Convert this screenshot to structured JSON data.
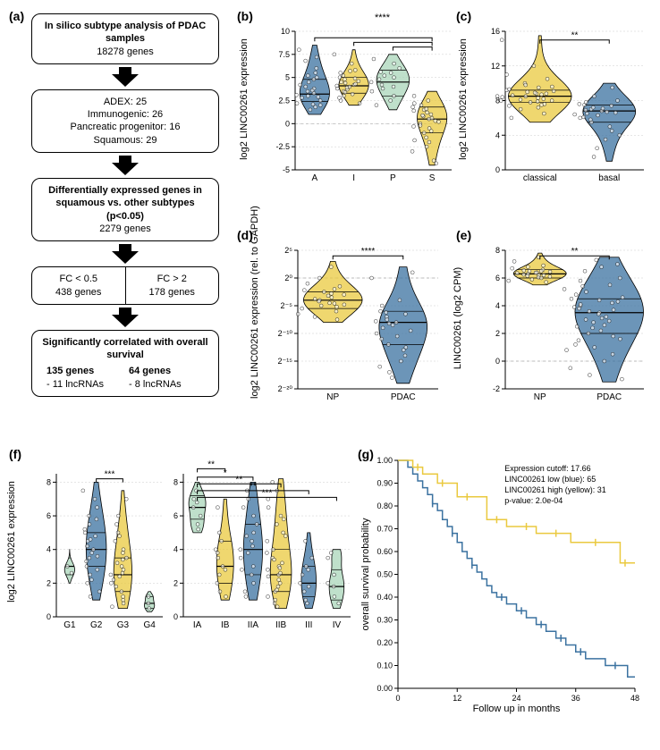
{
  "colors": {
    "blue": "#3b72a0",
    "yellow": "#eac93f",
    "green": "#a9d5b9",
    "axis": "#000000",
    "grid": "#cccccc"
  },
  "panel_a": {
    "label": "(a)",
    "boxes": [
      {
        "type": "single",
        "title": "In silico subtype analysis of PDAC samples",
        "sub": "18278 genes"
      },
      {
        "type": "single",
        "lines": [
          "ADEX: 25",
          "Immunogenic: 26",
          "Pancreatic progenitor: 16",
          "Squamous: 29"
        ]
      },
      {
        "type": "single",
        "title": "Differentially expressed genes in squamous vs. other subtypes (p<0.05)",
        "sub": "2279 genes"
      },
      {
        "type": "split",
        "left_title": "FC < 0.5",
        "left_sub": "438 genes",
        "right_title": "FC > 2",
        "right_sub": "178 genes"
      },
      {
        "type": "single",
        "title": "Significantly correlated with overall survival",
        "left": "135 genes",
        "left_sub": "- 11 lncRNAs",
        "right": "64 genes",
        "right_sub": "- 8 lncRNAs"
      }
    ]
  },
  "panel_b": {
    "label": "(b)",
    "ylabel": "log2 LINC00261 expression",
    "ylim": [
      -5,
      10
    ],
    "yticks": [
      -5,
      -2.5,
      0,
      2.5,
      5,
      7.5,
      10
    ],
    "categories": [
      "A",
      "I",
      "P",
      "S"
    ],
    "colors": [
      "#3b72a0",
      "#eac93f",
      "#a9d5b9",
      "#eac93f"
    ],
    "sig": "****",
    "series": [
      {
        "median": 3.2,
        "q1": 2.4,
        "q3": 4.8,
        "lo": 1.0,
        "hi": 8.5,
        "w": 1.0,
        "pts": [
          3.0,
          2.5,
          4.5,
          5.5,
          2.1,
          3.8,
          6.0,
          1.5,
          8.0,
          2.8,
          3.5,
          4.0,
          2.2,
          5.2,
          6.8,
          3.3,
          2.0,
          4.8,
          7.2,
          3.6,
          2.9,
          1.8,
          5.0,
          4.2,
          3.1
        ]
      },
      {
        "median": 4.1,
        "q1": 3.3,
        "q3": 5.0,
        "lo": 2.0,
        "hi": 8.0,
        "w": 1.0,
        "pts": [
          4.0,
          3.5,
          4.5,
          5.0,
          3.8,
          4.8,
          3.0,
          5.5,
          2.5,
          4.2,
          3.7,
          4.9,
          5.8,
          3.2,
          4.6,
          6.5,
          2.8,
          4.1,
          3.9,
          5.2,
          4.4,
          3.4,
          7.5,
          4.3,
          2.2,
          5.7
        ]
      },
      {
        "median": 4.5,
        "q1": 3.0,
        "q3": 5.8,
        "lo": 1.5,
        "hi": 7.5,
        "w": 1.1,
        "pts": [
          4.5,
          3.5,
          5.5,
          2.5,
          6.0,
          4.0,
          5.0,
          3.0,
          6.5,
          4.8,
          2.0,
          5.2,
          3.8,
          7.0,
          4.2,
          5.6
        ]
      },
      {
        "median": 0.5,
        "q1": -1.0,
        "q3": 1.8,
        "lo": -4.5,
        "hi": 3.5,
        "w": 1.0,
        "pts": [
          0.5,
          1.0,
          -0.5,
          1.5,
          0.0,
          -1.0,
          2.0,
          -0.3,
          0.8,
          1.8,
          -2.0,
          0.3,
          -4.0,
          1.2,
          -1.5,
          2.5,
          0.6,
          -0.8,
          3.0,
          -3.0,
          1.4,
          -0.2,
          0.9,
          -1.8,
          2.2,
          -2.5,
          0.2,
          1.6,
          -4.3
        ]
      }
    ]
  },
  "panel_c": {
    "label": "(c)",
    "ylabel": "log2 LINC00261 expression",
    "ylim": [
      0,
      16
    ],
    "yticks": [
      0,
      4,
      8,
      12,
      16
    ],
    "categories": [
      "classical",
      "basal"
    ],
    "colors": [
      "#eac93f",
      "#3b72a0"
    ],
    "sig": "**",
    "series": [
      {
        "median": 8.5,
        "q1": 7.8,
        "q3": 9.2,
        "lo": 5.5,
        "hi": 15.5,
        "w": 1.2,
        "pts": [
          8.5,
          8.0,
          9.0,
          7.5,
          8.8,
          9.5,
          8.2,
          7.8,
          9.2,
          8.6,
          10.0,
          7.0,
          8.4,
          9.8,
          8.1,
          7.2,
          9.6,
          8.3,
          6.5,
          8.9,
          10.5,
          8.7,
          7.6,
          9.3,
          8.0,
          11.0,
          6.0,
          8.5,
          15.0,
          7.4,
          9.1,
          8.8,
          12.0,
          7.9
        ]
      },
      {
        "median": 6.8,
        "q1": 5.5,
        "q3": 7.5,
        "lo": 1.0,
        "hi": 10.0,
        "w": 1.0,
        "pts": [
          6.8,
          7.0,
          6.5,
          7.5,
          6.0,
          7.2,
          5.5,
          6.9,
          7.8,
          5.0,
          6.3,
          7.4,
          4.5,
          6.7,
          8.0,
          3.5,
          6.1,
          7.6,
          2.5,
          5.8,
          8.5,
          1.5,
          6.4,
          9.5,
          4.0,
          7.1,
          6.6
        ]
      }
    ]
  },
  "panel_d": {
    "label": "(d)",
    "ylabel": "log2 LINC00261 expression (rel. to GAPDH)",
    "ylim": [
      -20,
      5
    ],
    "yticks": [
      -20,
      -15,
      -10,
      -5,
      0,
      5
    ],
    "ytick_labels": [
      "2⁻²⁰",
      "2⁻¹⁵",
      "2⁻¹⁰",
      "2⁻⁵",
      "2⁰",
      "2⁵"
    ],
    "categories": [
      "NP",
      "PDAC"
    ],
    "colors": [
      "#eac93f",
      "#3b72a0"
    ],
    "sig": "****",
    "series": [
      {
        "median": -4.0,
        "q1": -5.5,
        "q3": -2.5,
        "lo": -8.0,
        "hi": 3.0,
        "w": 1.1,
        "pts": [
          -4,
          -3,
          -5,
          -2,
          -4.5,
          -3.5,
          -6,
          -2.5,
          -5.5,
          -1,
          -4.2,
          -3.8,
          -6.5,
          0,
          -7,
          -2.8,
          -4.8,
          2,
          -5.2,
          -3.2,
          -1.5,
          -4.6,
          -7.5,
          -2.2
        ]
      },
      {
        "median": -8.0,
        "q1": -12.0,
        "q3": -6.0,
        "lo": -19.0,
        "hi": 2.0,
        "w": 0.9,
        "pts": [
          -8,
          -7,
          -9,
          -6,
          -10,
          -12,
          -7.5,
          -11,
          -5,
          -13,
          -8.5,
          -14,
          -6.5,
          -15,
          -9.5,
          -4,
          -16,
          -7.8,
          -18,
          -6.2,
          -17,
          -8.2,
          0,
          -12.5,
          1,
          -10.5
        ]
      }
    ]
  },
  "panel_e": {
    "label": "(e)",
    "ylabel": "LINC00261 (log2 CPM)",
    "ylim": [
      -2,
      8
    ],
    "yticks": [
      -2,
      0,
      2,
      4,
      6,
      8
    ],
    "categories": [
      "NP",
      "PDAC"
    ],
    "colors": [
      "#eac93f",
      "#3b72a0"
    ],
    "sig": "**",
    "series": [
      {
        "median": 6.3,
        "q1": 6.0,
        "q3": 6.6,
        "lo": 5.5,
        "hi": 7.8,
        "w": 1.0,
        "pts": [
          6.3,
          6.1,
          6.5,
          6.0,
          6.4,
          6.2,
          6.6,
          5.9,
          6.7,
          6.35,
          6.15,
          6.55,
          5.8,
          6.8,
          6.25,
          7.5,
          6.45,
          6.05,
          6.9,
          6.38,
          5.7,
          6.5,
          6.2,
          7.2
        ]
      },
      {
        "median": 3.5,
        "q1": 2.0,
        "q3": 4.5,
        "lo": -1.5,
        "hi": 7.5,
        "w": 1.3,
        "pts": [
          3.5,
          3.0,
          4.0,
          2.5,
          4.5,
          2.0,
          5.0,
          1.5,
          3.8,
          5.5,
          1.0,
          4.2,
          0.5,
          3.2,
          6.0,
          0.0,
          4.8,
          -0.5,
          2.8,
          6.5,
          -1.0,
          3.6,
          5.2,
          1.8,
          4.6,
          2.2,
          7.0,
          3.4,
          -1.3,
          4.4,
          2.6,
          5.8,
          3.9,
          1.2,
          4.1,
          0.8,
          5.4,
          2.4,
          6.8,
          3.1,
          4.3,
          1.6,
          3.7,
          7.3,
          2.9
        ]
      }
    ]
  },
  "panel_f": {
    "label": "(f)",
    "ylabel": "log2 LINC00261 expression",
    "ylim": [
      0,
      8.5
    ],
    "yticks": [
      0,
      2,
      4,
      6,
      8
    ],
    "left": {
      "categories": [
        "G1",
        "G2",
        "G3",
        "G4"
      ],
      "colors": [
        "#a9d5b9",
        "#3b72a0",
        "#eac93f",
        "#a9d5b9"
      ],
      "sig": [
        {
          "from": 1,
          "to": 2,
          "label": "***",
          "h": 8.2
        }
      ],
      "series": [
        {
          "median": 3.0,
          "q1": 2.5,
          "q3": 3.5,
          "lo": 2.0,
          "hi": 4.0,
          "w": 0.5,
          "pts": [
            3.0,
            2.6
          ]
        },
        {
          "median": 4.0,
          "q1": 3.0,
          "q3": 5.0,
          "lo": 1.0,
          "hi": 8.0,
          "w": 1.0,
          "pts": [
            4.0,
            3.5,
            4.5,
            3.0,
            5.0,
            2.5,
            5.5,
            4.2,
            2.0,
            5.8,
            3.8,
            6.5,
            2.8,
            4.8,
            1.5,
            7.0,
            3.3,
            5.2,
            2.2,
            6.0,
            4.6,
            1.2,
            7.5,
            3.6
          ]
        },
        {
          "median": 2.5,
          "q1": 1.5,
          "q3": 3.5,
          "lo": 0.5,
          "hi": 7.5,
          "w": 0.9,
          "pts": [
            2.5,
            2.0,
            3.0,
            1.5,
            3.5,
            1.0,
            4.0,
            2.8,
            0.8,
            4.5,
            2.2,
            5.0,
            3.2,
            0.6,
            5.5,
            1.8,
            6.0,
            2.6,
            7.0,
            3.8,
            1.2,
            3.4,
            2.4,
            4.8
          ]
        },
        {
          "median": 0.8,
          "q1": 0.5,
          "q3": 1.2,
          "lo": 0.3,
          "hi": 1.5,
          "w": 0.5,
          "pts": [
            0.8,
            0.5,
            1.2
          ]
        }
      ]
    },
    "right": {
      "categories": [
        "IA",
        "IB",
        "IIA",
        "IIB",
        "III",
        "IV"
      ],
      "colors": [
        "#a9d5b9",
        "#eac93f",
        "#3b72a0",
        "#eac93f",
        "#3b72a0",
        "#a9d5b9"
      ],
      "sig": [
        {
          "from": 0,
          "to": 1,
          "label": "**",
          "h": 8.8
        },
        {
          "from": 0,
          "to": 2,
          "label": "*",
          "h": 8.3
        },
        {
          "from": 0,
          "to": 3,
          "label": "**",
          "h": 7.9
        },
        {
          "from": 0,
          "to": 4,
          "label": "**",
          "h": 7.5
        },
        {
          "from": 0,
          "to": 5,
          "label": "***",
          "h": 7.1
        }
      ],
      "series": [
        {
          "median": 6.5,
          "q1": 5.8,
          "q3": 7.2,
          "lo": 5.0,
          "hi": 8.0,
          "w": 0.8,
          "pts": [
            6.5,
            6.0,
            7.0,
            5.5,
            7.5,
            6.8,
            5.2
          ]
        },
        {
          "median": 3.0,
          "q1": 2.0,
          "q3": 4.5,
          "lo": 1.0,
          "hi": 7.0,
          "w": 0.8,
          "pts": [
            3.0,
            2.5,
            3.5,
            2.0,
            4.0,
            1.5,
            5.0,
            3.8,
            6.5,
            2.8,
            4.5,
            1.2
          ]
        },
        {
          "median": 4.0,
          "q1": 2.5,
          "q3": 5.5,
          "lo": 1.0,
          "hi": 8.0,
          "w": 0.9,
          "pts": [
            4.0,
            3.5,
            4.5,
            2.5,
            5.5,
            3.0,
            6.0,
            2.0,
            5.0,
            1.5,
            6.5,
            3.8,
            7.5,
            2.8,
            4.8,
            1.2,
            7.0,
            4.2
          ]
        },
        {
          "median": 2.5,
          "q1": 1.5,
          "q3": 4.0,
          "lo": 0.5,
          "hi": 8.2,
          "w": 1.0,
          "pts": [
            2.5,
            2.0,
            3.0,
            1.5,
            3.5,
            1.0,
            4.0,
            2.8,
            0.8,
            4.5,
            2.2,
            5.0,
            3.2,
            0.6,
            5.5,
            1.8,
            6.0,
            2.6,
            7.0,
            3.8,
            1.2,
            8.0,
            3.4,
            6.5,
            2.4,
            7.5,
            4.8,
            1.6,
            5.8,
            2.9
          ]
        },
        {
          "median": 2.0,
          "q1": 1.2,
          "q3": 3.0,
          "lo": 0.5,
          "hi": 5.0,
          "w": 0.7,
          "pts": [
            2.0,
            1.5,
            2.5,
            1.0,
            3.0,
            0.8,
            3.5,
            2.8,
            4.5,
            1.8
          ]
        },
        {
          "median": 1.8,
          "q1": 1.0,
          "q3": 2.8,
          "lo": 0.5,
          "hi": 4.0,
          "w": 0.7,
          "pts": [
            1.8,
            1.2,
            2.5,
            0.8,
            3.5,
            2.0,
            3.8
          ]
        }
      ]
    }
  },
  "panel_g": {
    "label": "(g)",
    "xlabel": "Follow up in months",
    "ylabel": "overall survival probability",
    "xlim": [
      0,
      48
    ],
    "xticks": [
      0,
      12,
      24,
      36,
      48
    ],
    "ylim": [
      0,
      1
    ],
    "yticks": [
      0,
      0.1,
      0.2,
      0.3,
      0.4,
      0.5,
      0.6,
      0.7,
      0.8,
      0.9,
      1.0
    ],
    "legend": [
      "Expression cutoff: 17.66",
      "LINC00261 low (blue): 65",
      "LINC00261 high (yellow): 31",
      "p-value: 2.0e-04"
    ],
    "curves": {
      "high": {
        "color": "#eac93f",
        "steps": [
          [
            0,
            1.0
          ],
          [
            3,
            0.97
          ],
          [
            5,
            0.94
          ],
          [
            8,
            0.9
          ],
          [
            12,
            0.84
          ],
          [
            18,
            0.74
          ],
          [
            22,
            0.71
          ],
          [
            28,
            0.68
          ],
          [
            35,
            0.64
          ],
          [
            44,
            0.64
          ],
          [
            45,
            0.55
          ],
          [
            48,
            0.55
          ]
        ],
        "censor": [
          4,
          9,
          14,
          20,
          26,
          32,
          40,
          46
        ]
      },
      "low": {
        "color": "#3b72a0",
        "steps": [
          [
            0,
            1.0
          ],
          [
            2,
            0.97
          ],
          [
            3,
            0.94
          ],
          [
            4,
            0.91
          ],
          [
            5,
            0.88
          ],
          [
            6,
            0.85
          ],
          [
            7,
            0.81
          ],
          [
            8,
            0.78
          ],
          [
            9,
            0.74
          ],
          [
            10,
            0.71
          ],
          [
            11,
            0.68
          ],
          [
            12,
            0.64
          ],
          [
            13,
            0.6
          ],
          [
            14,
            0.57
          ],
          [
            15,
            0.54
          ],
          [
            16,
            0.51
          ],
          [
            17,
            0.48
          ],
          [
            18,
            0.45
          ],
          [
            19,
            0.42
          ],
          [
            20,
            0.4
          ],
          [
            22,
            0.37
          ],
          [
            24,
            0.34
          ],
          [
            26,
            0.31
          ],
          [
            28,
            0.28
          ],
          [
            30,
            0.25
          ],
          [
            32,
            0.22
          ],
          [
            34,
            0.19
          ],
          [
            36,
            0.16
          ],
          [
            38,
            0.13
          ],
          [
            42,
            0.1
          ],
          [
            46,
            0.1
          ],
          [
            46.5,
            0.05
          ],
          [
            48,
            0.05
          ]
        ],
        "censor": [
          7,
          11,
          15,
          21,
          25,
          29,
          33,
          37,
          44
        ]
      }
    }
  }
}
